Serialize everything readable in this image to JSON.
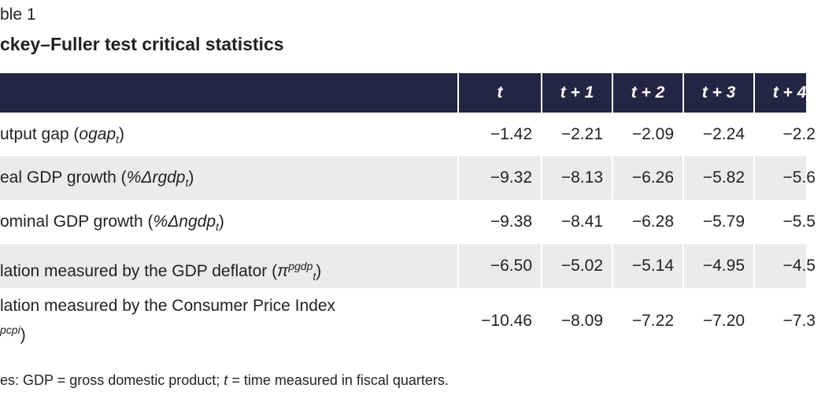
{
  "header": {
    "label": "ble 1",
    "title": "ckey–Fuller test critical statistics"
  },
  "table": {
    "columns": [
      "t",
      "t + 1",
      "t + 2",
      "t + 3",
      "t + 4"
    ],
    "rows": [
      {
        "label": {
          "text": "utput gap (",
          "italic": "ogap",
          "sub": "t",
          "end": ")"
        },
        "values": [
          "−1.42",
          "−2.21",
          "−2.09",
          "−2.24",
          "−2.2"
        ]
      },
      {
        "label": {
          "text": "eal GDP growth (",
          "italic": "%Δrgdp",
          "sub": "t",
          "end": ")"
        },
        "values": [
          "−9.32",
          "−8.13",
          "−6.26",
          "−5.82",
          "−5.6"
        ]
      },
      {
        "label": {
          "text": "ominal GDP growth (",
          "italic": "%Δngdp",
          "sub": "t",
          "end": ")"
        },
        "values": [
          "−9.38",
          "−8.41",
          "−6.28",
          "−5.79",
          "−5.5"
        ]
      },
      {
        "label": {
          "text": "lation measured by the GDP deflator (",
          "italic": "π",
          "sup": "pgdp",
          "sub": "t",
          "end": ")"
        },
        "values": [
          "−6.50",
          "−5.02",
          "−5.14",
          "−4.95",
          "−4.5"
        ]
      },
      {
        "label": {
          "text": "lation measured by the Consumer Price Index",
          "sup": "pcpi",
          "end": ")"
        },
        "values": [
          "−10.46",
          "−8.09",
          "−7.22",
          "−7.20",
          "−7.3"
        ]
      }
    ]
  },
  "note": {
    "text": "es: GDP = gross domestic product; ",
    "italic": "t",
    "end": " = time measured in fiscal quarters."
  }
}
